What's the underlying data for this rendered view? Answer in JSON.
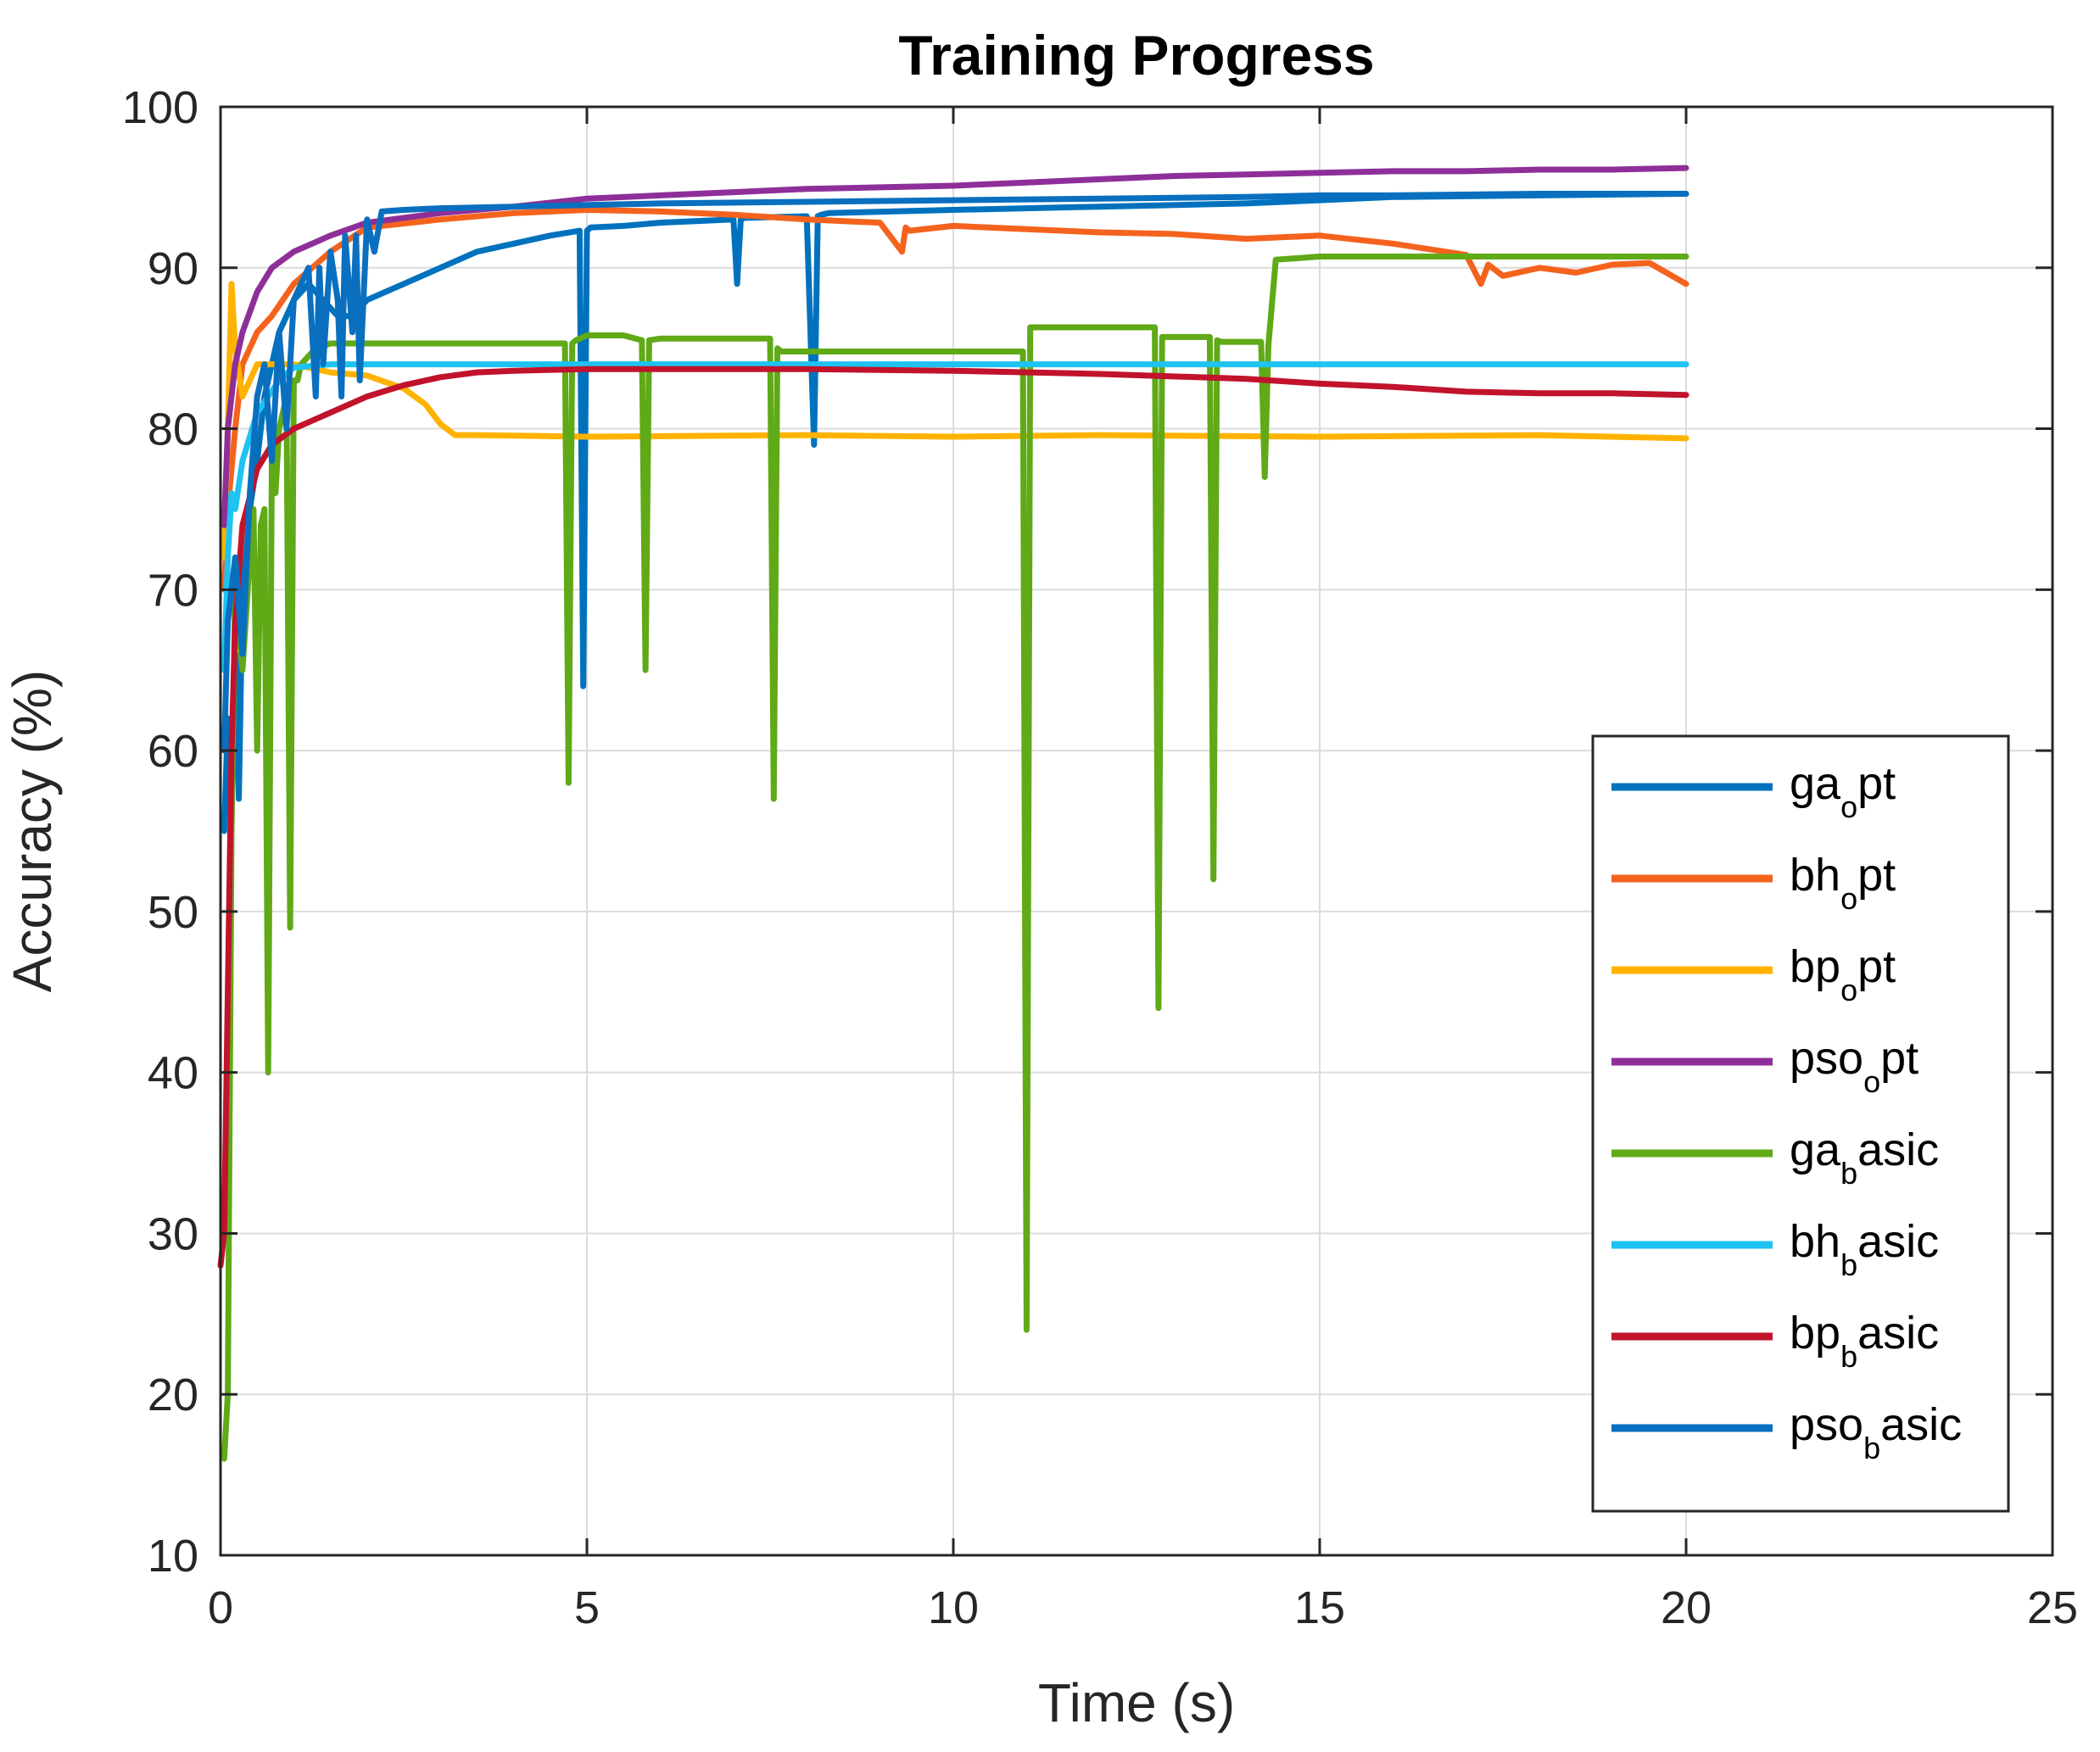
{
  "chart_data": {
    "type": "line",
    "title": "Training Progress",
    "xlabel": "Time (s)",
    "ylabel": "Accuracy (%)",
    "xlim": [
      0,
      25
    ],
    "ylim": [
      10,
      100
    ],
    "xticks": [
      0,
      5,
      10,
      15,
      20,
      25
    ],
    "yticks": [
      10,
      20,
      30,
      40,
      50,
      60,
      70,
      80,
      90,
      100
    ],
    "xtick_labels": [
      "0",
      "5",
      "10",
      "15",
      "20",
      "25"
    ],
    "ytick_labels": [
      "10",
      "20",
      "30",
      "40",
      "50",
      "60",
      "70",
      "80",
      "90",
      "100"
    ],
    "grid": true,
    "legend_position": "lower-right",
    "series": [
      {
        "name": "ga_opt",
        "label_main": "ga",
        "label_sub": "o",
        "label_rest": "pt",
        "color": "#0072BD",
        "x": [
          0.05,
          0.1,
          0.15,
          0.2,
          0.25,
          0.3,
          0.35,
          0.4,
          0.5,
          0.6,
          0.7,
          0.8,
          0.9,
          1.0,
          1.2,
          1.4,
          1.6,
          1.8,
          2.0,
          2.5,
          3.0,
          3.5,
          4.0,
          4.5,
          4.9,
          4.95,
          5.0,
          5.05,
          5.5,
          6.0,
          7.0,
          7.05,
          7.1,
          7.15,
          8.0,
          8.1,
          8.15,
          8.2,
          8.3,
          10.0,
          12.0,
          14.0,
          15.0,
          16.0,
          18.0,
          20.0
        ],
        "y": [
          55,
          62,
          58,
          66,
          57,
          70,
          72,
          75,
          78,
          82,
          84,
          86,
          87,
          88,
          89,
          88,
          87,
          87,
          88,
          89,
          90,
          91,
          91.5,
          92,
          92.3,
          64,
          92.3,
          92.5,
          92.6,
          92.8,
          93,
          89,
          93,
          93.1,
          93.2,
          79,
          93.2,
          93.3,
          93.4,
          93.6,
          93.8,
          94,
          94.2,
          94.4,
          94.5,
          94.6
        ]
      },
      {
        "name": "bh_opt",
        "label_main": "bh",
        "label_sub": "o",
        "label_rest": "pt",
        "color": "#F4631E",
        "x": [
          0.05,
          0.1,
          0.2,
          0.3,
          0.5,
          0.7,
          1.0,
          1.5,
          2.0,
          3.0,
          4.0,
          5.0,
          6.0,
          7.0,
          8.0,
          9.0,
          9.3,
          9.35,
          9.4,
          10.0,
          11.0,
          12.0,
          13.0,
          14.0,
          15.0,
          16.0,
          17.0,
          17.2,
          17.3,
          17.5,
          18.0,
          18.5,
          19.0,
          19.5,
          20.0
        ],
        "y": [
          70,
          75,
          80,
          84,
          86,
          87,
          89,
          91,
          92.5,
          93,
          93.4,
          93.6,
          93.5,
          93.3,
          93,
          92.8,
          91,
          92.5,
          92.3,
          92.6,
          92.4,
          92.2,
          92.1,
          91.8,
          92,
          91.5,
          90.8,
          89,
          90.2,
          89.5,
          90,
          89.7,
          90.2,
          90.3,
          89
        ]
      },
      {
        "name": "bp_opt",
        "label_main": "bp",
        "label_sub": "o",
        "label_rest": "pt",
        "color": "#FFB300",
        "x": [
          0.05,
          0.1,
          0.15,
          0.2,
          0.3,
          0.5,
          1.0,
          1.5,
          2.0,
          2.5,
          2.8,
          3.0,
          3.2,
          3.5,
          5.0,
          8.0,
          10.0,
          12.0,
          15.0,
          18.0,
          20.0
        ],
        "y": [
          72,
          80,
          89,
          85,
          82,
          84,
          84,
          83.5,
          83.3,
          82.5,
          81.5,
          80.3,
          79.6,
          79.6,
          79.5,
          79.6,
          79.5,
          79.6,
          79.5,
          79.6,
          79.4
        ]
      },
      {
        "name": "pso_opt",
        "label_main": "pso",
        "label_sub": "o",
        "label_rest": "pt",
        "color": "#8E2F99",
        "x": [
          0.05,
          0.1,
          0.2,
          0.3,
          0.5,
          0.7,
          1.0,
          1.5,
          2.0,
          3.0,
          4.0,
          5.0,
          6.0,
          7.0,
          8.0,
          9.0,
          10.0,
          11.0,
          12.0,
          13.0,
          14.0,
          15.0,
          16.0,
          17.0,
          18.0,
          19.0,
          20.0
        ],
        "y": [
          74,
          80,
          84,
          86,
          88.5,
          90,
          91,
          92,
          92.8,
          93.4,
          93.8,
          94.3,
          94.5,
          94.7,
          94.9,
          95,
          95.1,
          95.3,
          95.5,
          95.7,
          95.8,
          95.9,
          96,
          96,
          96.1,
          96.1,
          96.2
        ]
      },
      {
        "name": "ga_basic",
        "label_main": "ga",
        "label_sub": "b",
        "label_rest": "asic",
        "color": "#60A917",
        "x": [
          0.05,
          0.1,
          0.15,
          0.2,
          0.3,
          0.4,
          0.45,
          0.5,
          0.55,
          0.6,
          0.65,
          0.7,
          0.75,
          0.8,
          0.9,
          0.95,
          1.0,
          1.05,
          1.1,
          1.3,
          1.5,
          2.0,
          3.0,
          4.0,
          4.7,
          4.75,
          4.8,
          4.85,
          5.0,
          5.5,
          5.75,
          5.8,
          5.85,
          6.0,
          6.5,
          7.0,
          7.5,
          7.55,
          7.6,
          7.65,
          8.0,
          9.0,
          10.0,
          10.5,
          10.95,
          11.0,
          11.05,
          11.2,
          12.0,
          12.5,
          12.75,
          12.8,
          12.85,
          13.0,
          13.4,
          13.5,
          13.55,
          13.6,
          13.65,
          14.0,
          14.2,
          14.25,
          14.3,
          14.4,
          15.0,
          16.0,
          18.0,
          20.0
        ],
        "y": [
          16,
          20,
          55,
          70,
          65,
          72,
          75,
          60,
          74,
          75,
          40,
          78,
          76,
          80,
          82,
          49,
          83,
          83,
          84,
          85,
          85.3,
          85.3,
          85.3,
          85.3,
          85.3,
          58,
          85.3,
          85.5,
          85.8,
          85.8,
          85.5,
          65,
          85.5,
          85.6,
          85.6,
          85.6,
          85.6,
          57,
          85,
          84.8,
          84.8,
          84.8,
          84.8,
          84.8,
          84.8,
          24,
          86.3,
          86.3,
          86.3,
          86.3,
          86.3,
          44,
          85.7,
          85.7,
          85.7,
          85.7,
          52,
          85.5,
          85.4,
          85.4,
          85.4,
          77,
          85.2,
          90.5,
          90.7,
          90.7,
          90.7,
          90.7
        ]
      },
      {
        "name": "bh_basic",
        "label_main": "bh",
        "label_sub": "b",
        "label_rest": "asic",
        "color": "#1EC3F2",
        "x": [
          0.05,
          0.1,
          0.15,
          0.2,
          0.3,
          0.5,
          0.8,
          1.0,
          1.5,
          2.0,
          3.0,
          5.0,
          8.0,
          10.0,
          12.0,
          15.0,
          18.0,
          20.0
        ],
        "y": [
          65,
          72,
          76,
          75,
          78,
          81,
          83,
          83.8,
          84,
          84,
          84,
          84,
          84,
          84,
          84,
          84,
          84,
          84
        ]
      },
      {
        "name": "bp_basic",
        "label_main": "bp",
        "label_sub": "b",
        "label_rest": "asic",
        "color": "#C1132B",
        "x": [
          0.0,
          0.05,
          0.1,
          0.15,
          0.2,
          0.3,
          0.5,
          0.7,
          1.0,
          1.5,
          2.0,
          2.5,
          3.0,
          3.5,
          4.0,
          5.0,
          6.0,
          7.0,
          8.0,
          10.0,
          12.0,
          14.0,
          15.0,
          16.0,
          17.0,
          18.0,
          19.0,
          20.0
        ],
        "y": [
          28,
          30,
          45,
          60,
          68,
          74,
          77.5,
          79,
          80,
          81,
          82,
          82.7,
          83.2,
          83.5,
          83.6,
          83.7,
          83.7,
          83.7,
          83.7,
          83.6,
          83.4,
          83.1,
          82.8,
          82.6,
          82.3,
          82.2,
          82.2,
          82.1
        ]
      },
      {
        "name": "pso_basic",
        "label_main": "pso",
        "label_sub": "b",
        "label_rest": "asic",
        "color": "#0A6FBF",
        "x": [
          0.05,
          0.1,
          0.2,
          0.3,
          0.4,
          0.5,
          0.6,
          0.7,
          0.8,
          0.9,
          1.0,
          1.2,
          1.3,
          1.35,
          1.4,
          1.5,
          1.6,
          1.65,
          1.7,
          1.8,
          1.85,
          1.9,
          2.0,
          2.1,
          2.2,
          2.5,
          3.0,
          4.0,
          5.0,
          6.0,
          8.0,
          10.0,
          12.0,
          14.0,
          15.0,
          16.0,
          18.0,
          20.0
        ],
        "y": [
          60,
          68,
          72,
          66,
          76,
          82,
          84,
          78,
          86,
          80,
          88,
          90,
          82,
          90,
          84,
          91,
          88,
          82,
          92,
          86,
          92,
          83,
          93,
          91,
          93.5,
          93.6,
          93.7,
          93.8,
          93.9,
          94,
          94.1,
          94.2,
          94.3,
          94.4,
          94.5,
          94.5,
          94.6,
          94.6
        ]
      }
    ]
  }
}
